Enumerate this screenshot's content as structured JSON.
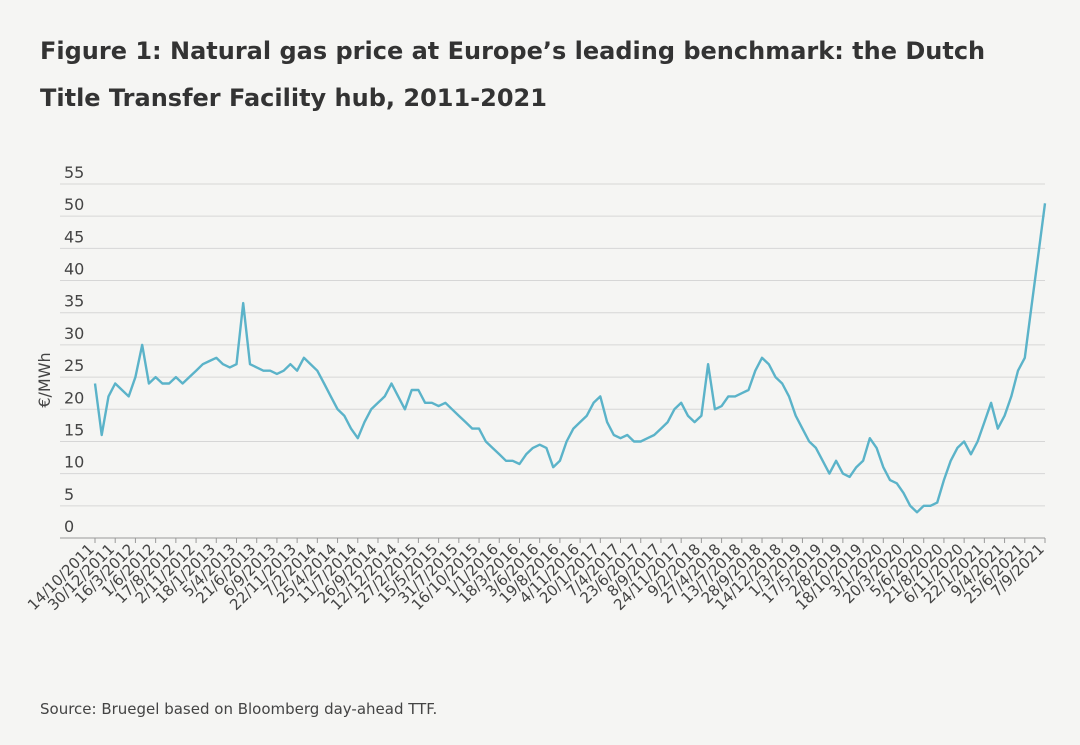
{
  "chart_data": {
    "type": "line",
    "title": "Figure 1: Natural gas price at Europe’s leading benchmark: the Dutch Title Transfer Facility hub, 2011-2021",
    "y_label": "€/MWh",
    "source": "Source: Bruegel based on Bloomberg day-ahead TTF.",
    "ylim": [
      0,
      55
    ],
    "yticks": [
      0,
      5,
      10,
      15,
      20,
      25,
      30,
      35,
      40,
      45,
      50,
      55
    ],
    "grid": true,
    "categories": [
      "14/10/2011",
      null,
      null,
      "30/12/2011",
      null,
      null,
      "16/3/2012",
      null,
      null,
      "1/6/2012",
      null,
      null,
      "17/8/2012",
      null,
      null,
      "2/11/2012",
      null,
      null,
      "18/1/2013",
      null,
      null,
      "5/4/2013",
      null,
      null,
      "21/6/2013",
      null,
      null,
      "6/9/2013",
      null,
      null,
      "22/11/2013",
      null,
      null,
      "7/2/2014",
      null,
      null,
      "25/4/2014",
      null,
      null,
      "11/7/2014",
      null,
      null,
      "26/9/2014",
      null,
      null,
      "12/12/2014",
      null,
      null,
      "27/2/2015",
      null,
      null,
      "15/5/2015",
      null,
      null,
      "31/7/2015",
      null,
      null,
      "16/10/2015",
      null,
      null,
      "1/1/2016",
      null,
      null,
      "18/3/2016",
      null,
      null,
      "3/6/2016",
      null,
      null,
      "19/8/2016",
      null,
      null,
      "4/11/2016",
      null,
      null,
      "20/1/2017",
      null,
      null,
      "7/4/2017",
      null,
      null,
      "23/6/2017",
      null,
      null,
      "8/9/2017",
      null,
      null,
      "24/11/2017",
      null,
      null,
      "9/2/2018",
      null,
      null,
      "27/4/2018",
      null,
      null,
      "13/7/2018",
      null,
      null,
      "28/9/2018",
      null,
      null,
      "14/12/2018",
      null,
      null,
      "1/3/2019",
      null,
      null,
      "17/5/2019",
      null,
      null,
      "2/8/2019",
      null,
      null,
      "18/10/2019",
      null,
      null,
      "3/1/2020",
      null,
      null,
      "20/3/2020",
      null,
      null,
      "5/6/2020",
      null,
      null,
      "21/8/2020",
      null,
      null,
      "6/11/2020",
      null,
      null,
      "22/1/2021",
      null,
      null,
      "9/4/2021",
      null,
      null,
      "25/6/2021",
      null,
      null,
      "7/9/2021"
    ],
    "series": [
      {
        "name": "TTF",
        "color": "#5bb3c9",
        "values": [
          24,
          16,
          22,
          24,
          23,
          22,
          25,
          30,
          24,
          25,
          24,
          24,
          25,
          24,
          25,
          26,
          27,
          27.5,
          28,
          27,
          26.5,
          27,
          36.5,
          27,
          26.5,
          26,
          26,
          25.5,
          26,
          27,
          26,
          28,
          27,
          26,
          24,
          22,
          20,
          19,
          17,
          15.5,
          18,
          20,
          21,
          22,
          24,
          22,
          20,
          23,
          23,
          21,
          21,
          20.5,
          21,
          20,
          19,
          18,
          17,
          17,
          15,
          14,
          13,
          12,
          12,
          11.5,
          13,
          14,
          14.5,
          14,
          11,
          12,
          15,
          17,
          18,
          19,
          21,
          22,
          18,
          16,
          15.5,
          16,
          15,
          15,
          15.5,
          16,
          17,
          18,
          20,
          21,
          19,
          18,
          19,
          27,
          20,
          20.5,
          22,
          22,
          22.5,
          23,
          26,
          28,
          27,
          25,
          24,
          22,
          19,
          17,
          15,
          14,
          12,
          10,
          12,
          10,
          9.5,
          11,
          12,
          15.5,
          14,
          11,
          9,
          8.5,
          7,
          5,
          4,
          5,
          5,
          5.5,
          9,
          12,
          14,
          15,
          13,
          15,
          18,
          21,
          17,
          19,
          22,
          26,
          28,
          36,
          44,
          52
        ]
      }
    ]
  }
}
